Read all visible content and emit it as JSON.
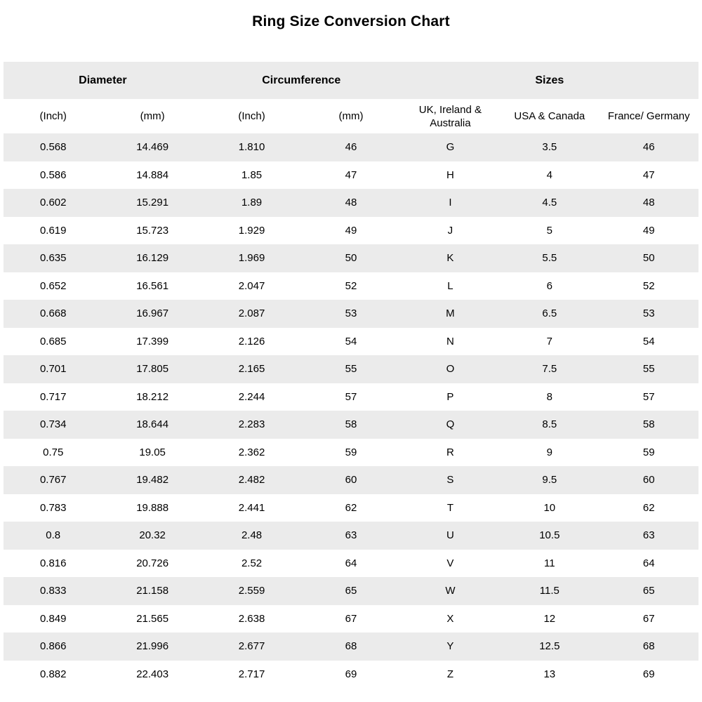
{
  "title": "Ring Size Conversion Chart",
  "colors": {
    "stripe": "#ebebeb",
    "background": "#ffffff",
    "text": "#000000"
  },
  "chart_data": {
    "type": "table",
    "title": "Ring Size Conversion Chart",
    "group_headers": [
      {
        "label": "Diameter",
        "span": 2
      },
      {
        "label": "Circumference",
        "span": 2
      },
      {
        "label": "Sizes",
        "span": 3
      }
    ],
    "column_headers": [
      "(Inch)",
      "(mm)",
      "(Inch)",
      "(mm)",
      "UK, Ireland & Australia",
      "USA & Canada",
      "France/ Germany"
    ],
    "rows": [
      [
        "0.568",
        "14.469",
        "1.810",
        "46",
        "G",
        "3.5",
        "46"
      ],
      [
        "0.586",
        "14.884",
        "1.85",
        "47",
        "H",
        "4",
        "47"
      ],
      [
        "0.602",
        "15.291",
        "1.89",
        "48",
        "I",
        "4.5",
        "48"
      ],
      [
        "0.619",
        "15.723",
        "1.929",
        "49",
        "J",
        "5",
        "49"
      ],
      [
        "0.635",
        "16.129",
        "1.969",
        "50",
        "K",
        "5.5",
        "50"
      ],
      [
        "0.652",
        "16.561",
        "2.047",
        "52",
        "L",
        "6",
        "52"
      ],
      [
        "0.668",
        "16.967",
        "2.087",
        "53",
        "M",
        "6.5",
        "53"
      ],
      [
        "0.685",
        "17.399",
        "2.126",
        "54",
        "N",
        "7",
        "54"
      ],
      [
        "0.701",
        "17.805",
        "2.165",
        "55",
        "O",
        "7.5",
        "55"
      ],
      [
        "0.717",
        "18.212",
        "2.244",
        "57",
        "P",
        "8",
        "57"
      ],
      [
        "0.734",
        "18.644",
        "2.283",
        "58",
        "Q",
        "8.5",
        "58"
      ],
      [
        "0.75",
        "19.05",
        "2.362",
        "59",
        "R",
        "9",
        "59"
      ],
      [
        "0.767",
        "19.482",
        "2.482",
        "60",
        "S",
        "9.5",
        "60"
      ],
      [
        "0.783",
        "19.888",
        "2.441",
        "62",
        "T",
        "10",
        "62"
      ],
      [
        "0.8",
        "20.32",
        "2.48",
        "63",
        "U",
        "10.5",
        "63"
      ],
      [
        "0.816",
        "20.726",
        "2.52",
        "64",
        "V",
        "11",
        "64"
      ],
      [
        "0.833",
        "21.158",
        "2.559",
        "65",
        "W",
        "11.5",
        "65"
      ],
      [
        "0.849",
        "21.565",
        "2.638",
        "67",
        "X",
        "12",
        "67"
      ],
      [
        "0.866",
        "21.996",
        "2.677",
        "68",
        "Y",
        "12.5",
        "68"
      ],
      [
        "0.882",
        "22.403",
        "2.717",
        "69",
        "Z",
        "13",
        "69"
      ]
    ]
  }
}
